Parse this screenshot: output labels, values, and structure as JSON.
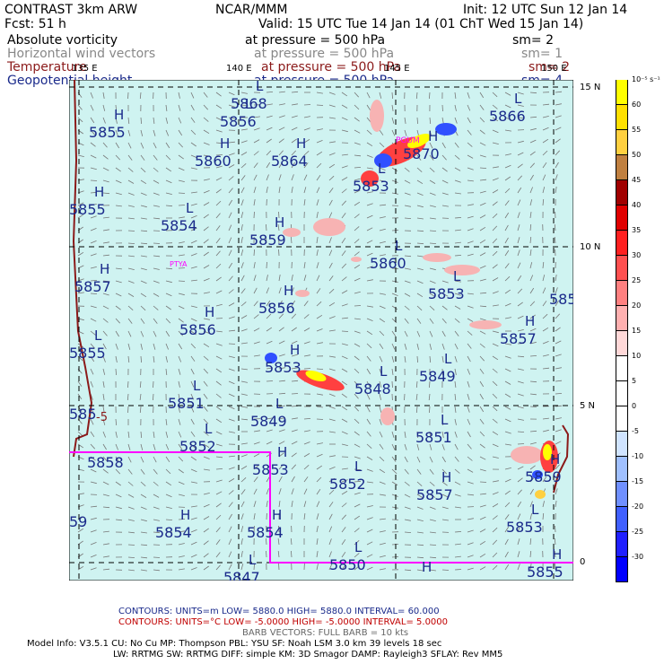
{
  "header": {
    "title": "CONTRAST  3km ARW",
    "center": "NCAR/MMM",
    "init": "Init: 12 UTC Sun 12 Jan 14",
    "fcst": "Fcst:     51 h",
    "valid": "Valid: 15 UTC Tue 14 Jan 14 (01 ChT Wed 15 Jan 14)"
  },
  "fields": [
    {
      "name": "Absolute vorticity",
      "level": "at pressure =   500 hPa",
      "sm": "sm= 2",
      "color": "#000000"
    },
    {
      "name": "Horizontal wind vectors",
      "level": "at pressure =   500 hPa",
      "sm": "sm= 1",
      "color": "#888888"
    },
    {
      "name": "Temperature",
      "level": "at pressure =   500 hPa",
      "sm": "sm= 2",
      "color": "#8b1a1a"
    },
    {
      "name": "Geopotential height",
      "level": "at pressure =   500 hPa",
      "sm": "sm= 4",
      "color": "#1a2a8b"
    }
  ],
  "map": {
    "lon_labels": [
      "135 E",
      "140 E",
      "145 E",
      "150 E"
    ],
    "lat_labels": [
      "15 N",
      "10 N",
      "5 N",
      "0"
    ],
    "place_labels": [
      "PGUM",
      "PTYA"
    ],
    "height_centers": [
      {
        "t": "L",
        "v": "5868"
      },
      {
        "t": "L",
        "v": "5856"
      },
      {
        "t": "H",
        "v": "5855"
      },
      {
        "t": "H",
        "v": "5860"
      },
      {
        "t": "H",
        "v": "5864"
      },
      {
        "t": "H",
        "v": "5870"
      },
      {
        "t": "L",
        "v": "5866"
      },
      {
        "t": "L",
        "v": "5853"
      },
      {
        "t": "H",
        "v": "5855"
      },
      {
        "t": "L",
        "v": "5854"
      },
      {
        "t": "H",
        "v": "5859"
      },
      {
        "t": "L",
        "v": "5860"
      },
      {
        "t": "H",
        "v": "5857"
      },
      {
        "t": "H",
        "v": "5856"
      },
      {
        "t": "L",
        "v": "5853"
      },
      {
        "t": "H",
        "v": "585"
      },
      {
        "t": "H",
        "v": "5856"
      },
      {
        "t": "L",
        "v": "5855"
      },
      {
        "t": "H",
        "v": "5857"
      },
      {
        "t": "H",
        "v": "5853"
      },
      {
        "t": "L",
        "v": "5848"
      },
      {
        "t": "L",
        "v": "5849"
      },
      {
        "t": "L",
        "v": "5851"
      },
      {
        "t": "L",
        "v": "5849"
      },
      {
        "t": "L",
        "v": "5851"
      },
      {
        "t": "",
        "v": "585"
      },
      {
        "t": "L",
        "v": "5852"
      },
      {
        "t": "",
        "v": "5858"
      },
      {
        "t": "H",
        "v": "5853"
      },
      {
        "t": "L",
        "v": "5852"
      },
      {
        "t": "H",
        "v": "5857"
      },
      {
        "t": "H",
        "v": "5859"
      },
      {
        "t": "H",
        "v": "5854"
      },
      {
        "t": "H",
        "v": "5854"
      },
      {
        "t": "L",
        "v": "5853"
      },
      {
        "t": "",
        "v": "59"
      },
      {
        "t": "L",
        "v": "5850"
      },
      {
        "t": "L",
        "v": "5847"
      },
      {
        "t": "H",
        "v": "5855"
      },
      {
        "t": "H",
        "v": ""
      }
    ],
    "temp_label": "-5"
  },
  "colorbar": {
    "unit": "10⁻⁵ s⁻¹",
    "labels": [
      "60",
      "55",
      "50",
      "45",
      "40",
      "35",
      "30",
      "25",
      "20",
      "15",
      "10",
      "5",
      "0",
      "-5",
      "-10",
      "-15",
      "-20",
      "-25",
      "-30"
    ],
    "colors": [
      "#ffff00",
      "#ffe000",
      "#ffd040",
      "#c08040",
      "#a00000",
      "#e00000",
      "#ff2020",
      "#ff5050",
      "#ff8080",
      "#ffb0b0",
      "#ffd8d8",
      "#ffffff",
      "#ffffff",
      "#ffffff",
      "#d0e4ff",
      "#a0c0ff",
      "#7090ff",
      "#4060ff",
      "#2020ff",
      "#0000ff"
    ]
  },
  "footer": {
    "contours1": "CONTOURS:  UNITS=m   LOW=   5880.0        HIGH=  5880.0        INTERVAL=   60.000",
    "contours2": "CONTOURS:  UNITS=°C  LOW= -5.0000        HIGH= -5.0000        INTERVAL=   5.0000",
    "barbs": "BARB VECTORS:  FULL BARB = 10 kts",
    "model1": "Model Info: V3.5.1    CU: No Cu     MP: Thompson     PBL: YSU       SF: Noah LSM     3.0 km   39 levels    18 sec",
    "model2": "LW: RRTMG    SW: RRTMG   DIFF: simple KM: 3D Smagor DAMP: Rayleigh3  SFLAY: Rev MM5"
  }
}
